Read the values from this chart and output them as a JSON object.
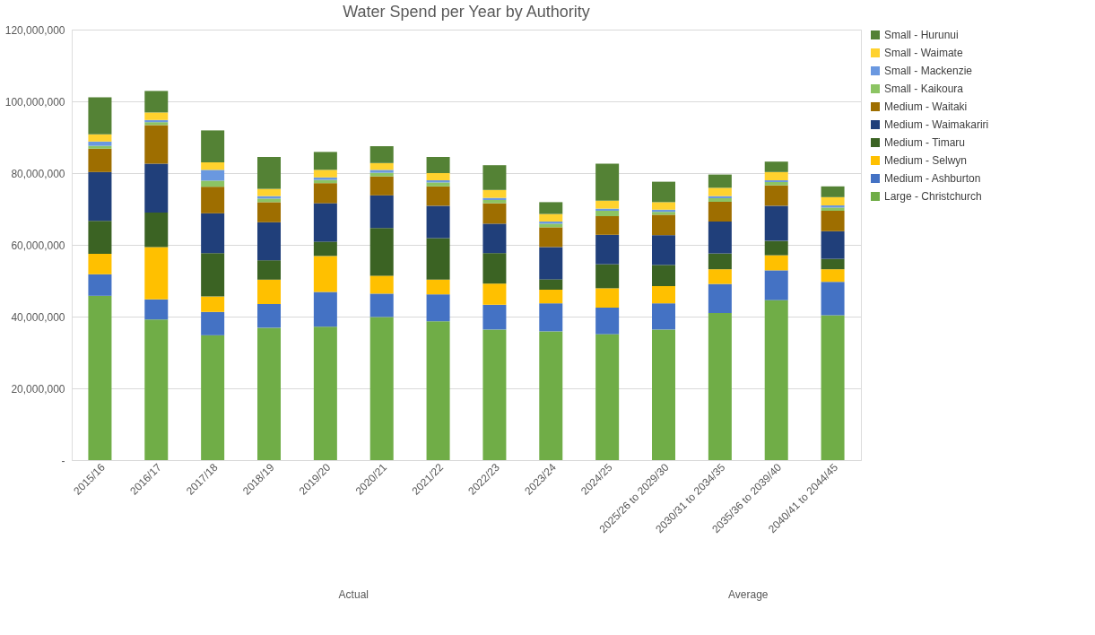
{
  "chart_data": {
    "type": "bar",
    "stacked": true,
    "title": "Water Spend per Year by Authority",
    "categories": [
      "2015/16",
      "2016/17",
      "2017/18",
      "2018/19",
      "2019/20",
      "2020/21",
      "2021/22",
      "2022/23",
      "2023/24",
      "2024/25",
      "2025/26 to 2029/30",
      "2030/31 to 2034/35",
      "2035/36 to 2039/40",
      "2040/41 to 2044/45"
    ],
    "series": [
      {
        "name": "Large - Christchurch",
        "color": "#70ad47",
        "values": [
          45800000,
          39200000,
          34800000,
          36900000,
          37200000,
          39900000,
          38700000,
          36400000,
          35900000,
          35100000,
          36400000,
          41000000,
          44600000,
          40400000
        ]
      },
      {
        "name": "Medium - Ashburton",
        "color": "#4472c4",
        "values": [
          6000000,
          5600000,
          6500000,
          6600000,
          9700000,
          6500000,
          7500000,
          6900000,
          7800000,
          7400000,
          7300000,
          8100000,
          8300000,
          9300000
        ]
      },
      {
        "name": "Medium - Selwyn",
        "color": "#ffc000",
        "values": [
          5700000,
          14600000,
          4300000,
          6800000,
          10000000,
          5000000,
          4100000,
          5900000,
          3800000,
          5400000,
          4800000,
          4100000,
          4200000,
          3500000
        ]
      },
      {
        "name": "Medium - Timaru",
        "color": "#3b6323",
        "values": [
          9200000,
          9600000,
          12100000,
          5400000,
          4000000,
          13300000,
          11600000,
          8500000,
          2900000,
          6700000,
          5900000,
          4400000,
          4000000,
          2900000
        ]
      },
      {
        "name": "Medium - Waimakariri",
        "color": "#203f7a",
        "values": [
          13600000,
          13600000,
          11100000,
          10600000,
          10700000,
          9100000,
          9000000,
          8200000,
          9000000,
          8200000,
          8300000,
          8900000,
          9800000,
          7700000
        ]
      },
      {
        "name": "Medium - Waitaki",
        "color": "#9e6e00",
        "values": [
          6500000,
          10800000,
          7400000,
          5600000,
          5600000,
          5300000,
          5400000,
          5700000,
          5500000,
          5200000,
          5700000,
          5500000,
          5700000,
          5700000
        ]
      },
      {
        "name": "Small - Kaikoura",
        "color": "#8cc463",
        "values": [
          800000,
          800000,
          1700000,
          1000000,
          900000,
          1000000,
          1100000,
          900000,
          1000000,
          1500000,
          800000,
          1000000,
          900000,
          900000
        ]
      },
      {
        "name": "Small - Mackenzie",
        "color": "#6a98e0",
        "values": [
          1200000,
          600000,
          3000000,
          700000,
          700000,
          800000,
          600000,
          600000,
          600000,
          600000,
          600000,
          600000,
          500000,
          600000
        ]
      },
      {
        "name": "Small - Waimate",
        "color": "#ffd22e",
        "values": [
          2000000,
          2100000,
          2100000,
          2000000,
          2100000,
          1900000,
          2000000,
          2200000,
          2100000,
          2200000,
          2100000,
          2300000,
          2300000,
          2300000
        ]
      },
      {
        "name": "Small - Hurunui",
        "color": "#548235",
        "values": [
          10300000,
          6000000,
          8900000,
          8900000,
          5000000,
          4700000,
          4500000,
          6900000,
          3300000,
          10300000,
          5700000,
          3700000,
          2900000,
          3000000
        ]
      }
    ],
    "ylim": [
      0,
      120000000
    ],
    "yticks": [
      {
        "value": 0,
        "label": "-"
      },
      {
        "value": 20000000,
        "label": "20,000,000"
      },
      {
        "value": 40000000,
        "label": "40,000,000"
      },
      {
        "value": 60000000,
        "label": "60,000,000"
      },
      {
        "value": 80000000,
        "label": "80,000,000"
      },
      {
        "value": 100000000,
        "label": "100,000,000"
      },
      {
        "value": 120000000,
        "label": "120,000,000"
      }
    ],
    "grid": "y",
    "legend": "right",
    "annotations": [
      "Actual",
      "Average"
    ]
  }
}
